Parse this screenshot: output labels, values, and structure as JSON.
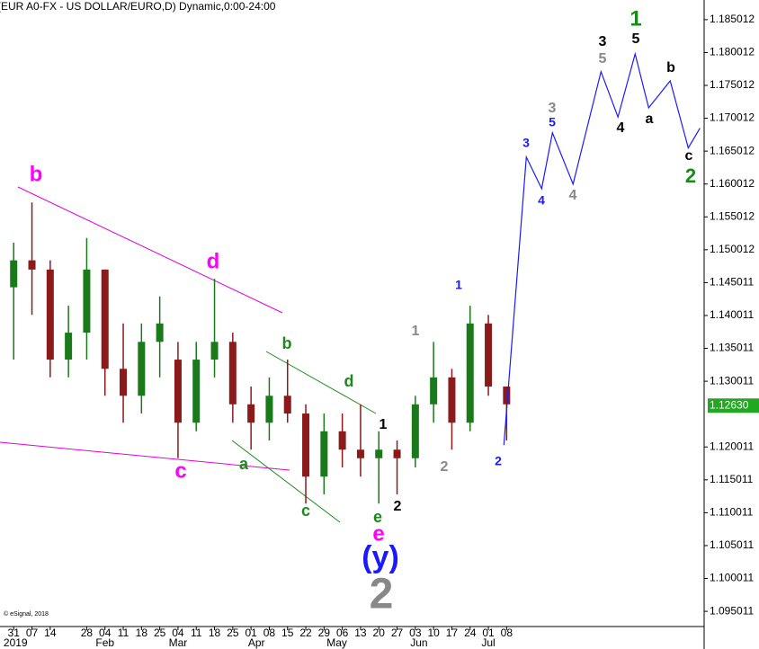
{
  "chart_data": {
    "type": "candlestick",
    "title": "(EUR A0-FX - US DOLLAR/EURO,D) Dynamic,0:00-24:00",
    "credit": "© eSignal, 2018",
    "xlim": [
      -0.75,
      37.82
    ],
    "xticks": [
      {
        "value": 0,
        "label": "31"
      },
      {
        "value": 1,
        "label": "07"
      },
      {
        "value": 2,
        "label": "14"
      },
      {
        "value": 4,
        "label": "28"
      },
      {
        "value": 5,
        "label": "04"
      },
      {
        "value": 6,
        "label": "11"
      },
      {
        "value": 7,
        "label": "18"
      },
      {
        "value": 8,
        "label": "25"
      },
      {
        "value": 9,
        "label": "04"
      },
      {
        "value": 10,
        "label": "11"
      },
      {
        "value": 11,
        "label": "18"
      },
      {
        "value": 12,
        "label": "25"
      },
      {
        "value": 13,
        "label": "01"
      },
      {
        "value": 14,
        "label": "08"
      },
      {
        "value": 15,
        "label": "15"
      },
      {
        "value": 16,
        "label": "22"
      },
      {
        "value": 17,
        "label": "29"
      },
      {
        "value": 18,
        "label": "06"
      },
      {
        "value": 19,
        "label": "13"
      },
      {
        "value": 20,
        "label": "20"
      },
      {
        "value": 21,
        "label": "27"
      },
      {
        "value": 22,
        "label": "03"
      },
      {
        "value": 23,
        "label": "10"
      },
      {
        "value": 24,
        "label": "17"
      },
      {
        "value": 25,
        "label": "24"
      },
      {
        "value": 26,
        "label": "01"
      },
      {
        "value": 27,
        "label": "08"
      }
    ],
    "month_ticks": [
      {
        "value": 0.1,
        "label": "2019"
      },
      {
        "value": 5,
        "label": "Feb"
      },
      {
        "value": 9,
        "label": "Mar"
      },
      {
        "value": 13.3,
        "label": "Apr"
      },
      {
        "value": 17.7,
        "label": "May"
      },
      {
        "value": 22.2,
        "label": "Jun"
      },
      {
        "value": 26,
        "label": "Jul"
      }
    ],
    "ylim": [
      1.0927,
      1.188
    ],
    "yticks": [
      1.185012,
      1.180012,
      1.175012,
      1.170012,
      1.165012,
      1.160012,
      1.155012,
      1.150012,
      1.145011,
      1.140011,
      1.135011,
      1.130011,
      1.120011,
      1.115011,
      1.110011,
      1.105011,
      1.100011,
      1.095011
    ],
    "up_color": "#1a7a1a",
    "down_color": "#8b1a1a",
    "candles": {
      "x": [
        0,
        1,
        2,
        3,
        4,
        5,
        6,
        7,
        8,
        9,
        10,
        11,
        12,
        13,
        14,
        15,
        16,
        17,
        18,
        19,
        20,
        21,
        22,
        23,
        24,
        25,
        26,
        27
      ],
      "open": [
        1.1443,
        1.1484,
        1.147,
        1.1333,
        1.1374,
        1.147,
        1.1319,
        1.1278,
        1.136,
        1.1333,
        1.1237,
        1.1333,
        1.136,
        1.1265,
        1.1237,
        1.1278,
        1.1251,
        1.1155,
        1.1224,
        1.1196,
        1.1183,
        1.1196,
        1.1183,
        1.1265,
        1.1306,
        1.1237,
        1.1388,
        1.1292
      ],
      "high": [
        1.1511,
        1.1572,
        1.1484,
        1.1415,
        1.1518,
        1.147,
        1.1388,
        1.1388,
        1.1429,
        1.136,
        1.136,
        1.1456,
        1.1374,
        1.1292,
        1.1306,
        1.1333,
        1.1265,
        1.1251,
        1.1251,
        1.1265,
        1.1224,
        1.121,
        1.1278,
        1.136,
        1.1319,
        1.1415,
        1.1401,
        1.1292
      ],
      "low": [
        1.1333,
        1.1401,
        1.1306,
        1.1306,
        1.1333,
        1.1278,
        1.1237,
        1.1251,
        1.1306,
        1.1183,
        1.1224,
        1.1306,
        1.1237,
        1.1196,
        1.121,
        1.1237,
        1.1114,
        1.1128,
        1.1169,
        1.1155,
        1.1114,
        1.1128,
        1.1169,
        1.1237,
        1.1196,
        1.1224,
        1.1278,
        1.121
      ],
      "close": [
        1.1484,
        1.147,
        1.1333,
        1.1374,
        1.147,
        1.1319,
        1.1278,
        1.136,
        1.1388,
        1.1237,
        1.1333,
        1.136,
        1.1265,
        1.1237,
        1.1278,
        1.1251,
        1.1155,
        1.1224,
        1.1196,
        1.1183,
        1.1196,
        1.1183,
        1.1265,
        1.1306,
        1.1237,
        1.1388,
        1.1292,
        1.1265
      ]
    },
    "projection": {
      "color": "#1a1aff",
      "x": [
        26.85,
        28.08,
        28.92,
        29.51,
        30.64,
        32.17,
        33.1,
        34.04,
        34.78,
        35.96,
        36.95,
        37.59
      ],
      "values": [
        1.1203,
        1.1641,
        1.1593,
        1.1678,
        1.16,
        1.1771,
        1.1702,
        1.1798,
        1.1716,
        1.1757,
        1.1655,
        1.1685
      ]
    },
    "last_price": {
      "value": 1.1263,
      "label": "1.12630"
    },
    "annotations": [
      "b",
      "d",
      "c",
      "e",
      "b",
      "d",
      "a",
      "c",
      "e",
      "1",
      "2",
      "1",
      "2",
      "1",
      "2",
      "(y)",
      "2",
      "3",
      "4",
      "3",
      "5",
      "4",
      "3",
      "5",
      "4",
      "1",
      "5",
      "a",
      "b",
      "c",
      "2"
    ]
  }
}
